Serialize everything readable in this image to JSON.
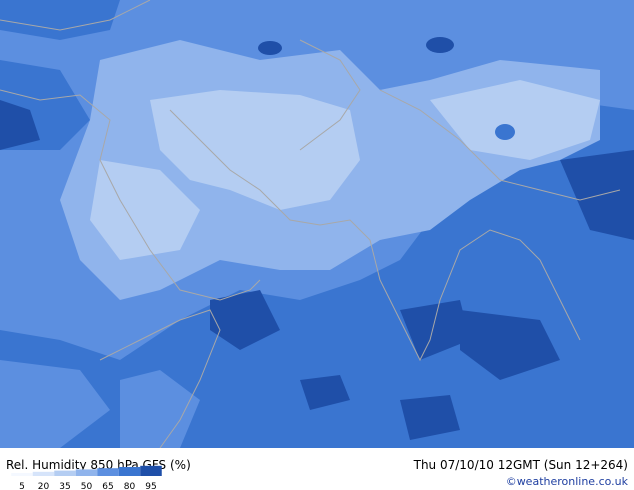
{
  "title": "Rel. Humidity 850 hPa GFS (%)",
  "valid_time": "Thu 07/10/10 12GMT  (Sun 12+264)",
  "credit": "©weatheronline.co.uk",
  "legend": [
    {
      "value": 5,
      "color": "#f4f8ff"
    },
    {
      "value": 20,
      "color": "#d6e4fa"
    },
    {
      "value": 35,
      "color": "#b4cdf2"
    },
    {
      "value": 50,
      "color": "#90b4ec"
    },
    {
      "value": 65,
      "color": "#5c8fe0"
    },
    {
      "value": 80,
      "color": "#3a75d0"
    },
    {
      "value": 95,
      "color": "#1f4fa8"
    }
  ]
}
